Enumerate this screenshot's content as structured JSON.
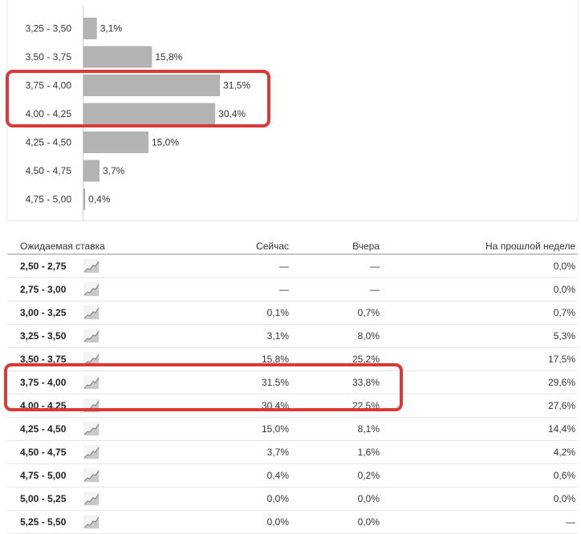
{
  "chart_data": {
    "type": "bar",
    "orientation": "horizontal",
    "categories": [
      "3,25 - 3,50",
      "3,50 - 3,75",
      "3,75 - 4,00",
      "4,00 - 4,25",
      "4,25 - 4,50",
      "4,50 - 4,75",
      "4,75 - 5,00"
    ],
    "values": [
      3.1,
      15.8,
      31.5,
      30.4,
      15.0,
      3.7,
      0.4
    ],
    "value_labels": [
      "3,1%",
      "15,8%",
      "31,5%",
      "30,4%",
      "15,0%",
      "3,7%",
      "0,4%"
    ],
    "bar_color": "#b3b3b3",
    "highlighted_categories": [
      "3,75 - 4,00",
      "4,00 - 4,25"
    ],
    "highlight_color": "#d93a35"
  },
  "table": {
    "headers": {
      "rate": "Ожидаемая ставка",
      "now": "Сейчас",
      "yesterday": "Вчера",
      "last_week": "На прошлой неделе"
    },
    "rows": [
      {
        "range": "2,50 - 2,75",
        "now": "—",
        "yesterday": "—",
        "last_week": "0,0%"
      },
      {
        "range": "2,75 - 3,00",
        "now": "—",
        "yesterday": "—",
        "last_week": "0,0%"
      },
      {
        "range": "3,00 - 3,25",
        "now": "0,1%",
        "yesterday": "0,7%",
        "last_week": "0,7%"
      },
      {
        "range": "3,25 - 3,50",
        "now": "3,1%",
        "yesterday": "8,0%",
        "last_week": "5,3%"
      },
      {
        "range": "3,50 - 3,75",
        "now": "15,8%",
        "yesterday": "25,2%",
        "last_week": "17,5%"
      },
      {
        "range": "3,75 - 4,00",
        "now": "31,5%",
        "yesterday": "33,8%",
        "last_week": "29,6%"
      },
      {
        "range": "4,00 - 4,25",
        "now": "30,4%",
        "yesterday": "22,5%",
        "last_week": "27,6%"
      },
      {
        "range": "4,25 - 4,50",
        "now": "15,0%",
        "yesterday": "8,1%",
        "last_week": "14,4%"
      },
      {
        "range": "4,50 - 4,75",
        "now": "3,7%",
        "yesterday": "1,6%",
        "last_week": "4,2%"
      },
      {
        "range": "4,75 - 5,00",
        "now": "0,4%",
        "yesterday": "0,2%",
        "last_week": "0,6%"
      },
      {
        "range": "5,00 - 5,25",
        "now": "0,0%",
        "yesterday": "0,0%",
        "last_week": "0,0%"
      },
      {
        "range": "5,25 - 5,50",
        "now": "0,0%",
        "yesterday": "0,0%",
        "last_week": "—"
      }
    ],
    "highlighted_rows": [
      "3,75 - 4,00",
      "4,00 - 4,25"
    ],
    "trend_icon": "sparkline-icon"
  }
}
